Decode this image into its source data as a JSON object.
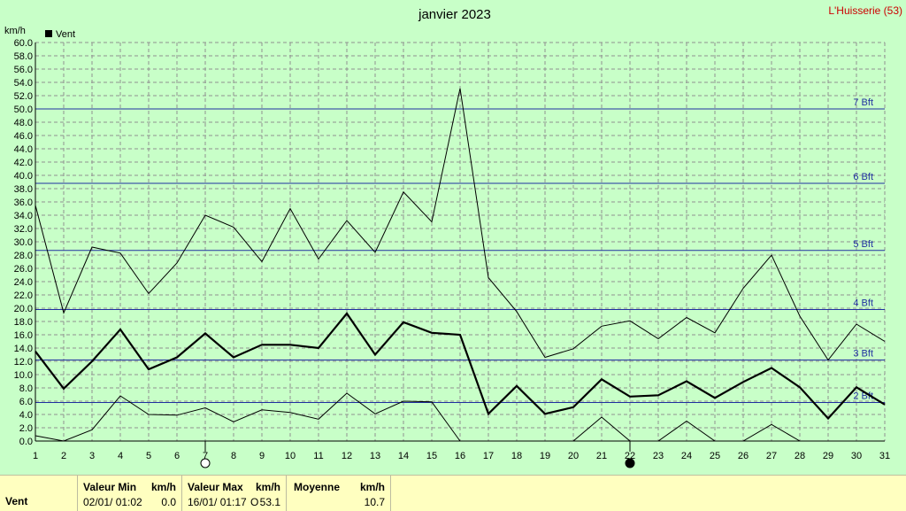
{
  "header": {
    "title": "janvier 2023",
    "station": "L'Huisserie (53)",
    "y_unit": "km/h"
  },
  "chart_data": {
    "type": "line",
    "legend": {
      "label": "Vent",
      "placement": "top-left"
    },
    "x": [
      1,
      2,
      3,
      4,
      5,
      6,
      7,
      8,
      9,
      10,
      11,
      12,
      13,
      14,
      15,
      16,
      17,
      18,
      19,
      20,
      21,
      22,
      23,
      24,
      25,
      26,
      27,
      28,
      29,
      30,
      31
    ],
    "ylim": [
      0,
      60
    ],
    "ytick_step": 2,
    "grid": true,
    "series": [
      {
        "role": "max",
        "values": [
          35.5,
          19.3,
          29.2,
          28.3,
          22.2,
          26.8,
          34.0,
          32.2,
          27.0,
          35.0,
          27.4,
          33.2,
          28.4,
          37.5,
          33.0,
          53.1,
          24.6,
          19.5,
          12.6,
          13.9,
          17.3,
          18.1,
          15.4,
          18.6,
          16.3,
          23.0,
          28.0,
          18.8,
          12.2,
          17.6,
          15.0
        ]
      },
      {
        "role": "mean",
        "values": [
          13.5,
          7.9,
          12.0,
          16.8,
          10.8,
          12.6,
          16.2,
          12.6,
          14.5,
          14.5,
          14.0,
          19.2,
          13.0,
          17.9,
          16.3,
          16.0,
          4.1,
          8.3,
          4.1,
          5.1,
          9.3,
          6.7,
          6.9,
          9.0,
          6.5,
          8.9,
          11.0,
          8.1,
          3.4,
          8.1,
          5.5
        ]
      },
      {
        "role": "min",
        "values": [
          0.8,
          0.0,
          1.7,
          6.8,
          4.0,
          3.9,
          5.0,
          2.9,
          4.7,
          4.3,
          3.3,
          7.2,
          4.1,
          6.0,
          5.9,
          0.0,
          null,
          null,
          null,
          0.0,
          3.6,
          0.0,
          0.0,
          3.0,
          0.0,
          0.0,
          2.5,
          0.0,
          null,
          null,
          null
        ]
      }
    ],
    "beaufort_lines": [
      {
        "label": "2 Bft",
        "value": 5.8
      },
      {
        "label": "3 Bft",
        "value": 12.2
      },
      {
        "label": "4 Bft",
        "value": 19.8
      },
      {
        "label": "5 Bft",
        "value": 28.7
      },
      {
        "label": "6 Bft",
        "value": 38.8
      },
      {
        "label": "7 Bft",
        "value": 50.0
      }
    ],
    "moon_phases": [
      {
        "day": 7,
        "phase": "full"
      },
      {
        "day": 22,
        "phase": "new"
      }
    ]
  },
  "stats": {
    "row_label": "Vent",
    "min_header": "Valeur Min",
    "min_unit": "km/h",
    "min_date": "02/01/  01:02",
    "min_value": "0.0",
    "max_header": "Valeur Max",
    "max_unit": "km/h",
    "max_date": "16/01/  01:17",
    "max_dir": "O",
    "max_value": "53.1",
    "mean_header": "Moyenne",
    "mean_unit": "km/h",
    "mean_value": "10.7"
  },
  "colors": {
    "background": "#c8ffc8",
    "grid": "#909090",
    "beaufort": "#2030a0",
    "series": "#000000",
    "station": "#cc0000",
    "stats_bg": "#ffffc0"
  }
}
